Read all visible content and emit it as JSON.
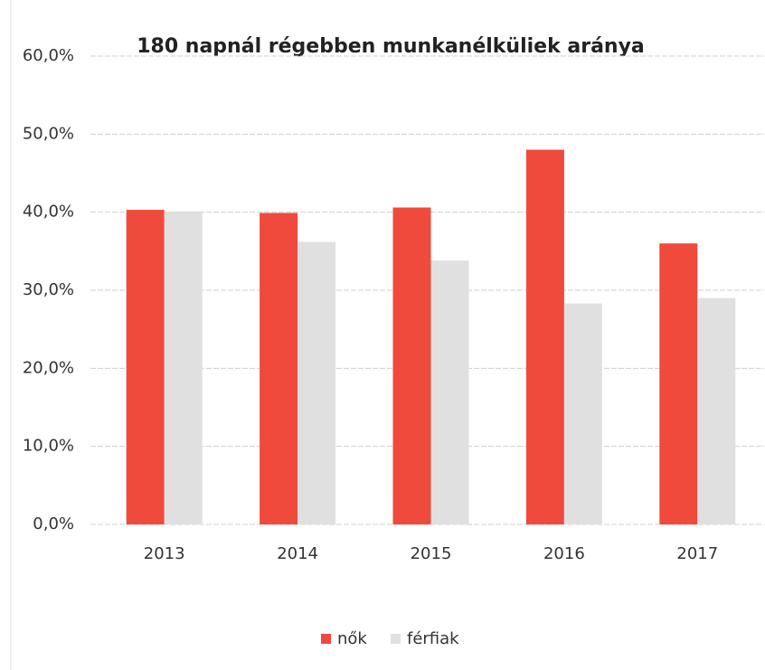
{
  "chart_data": {
    "type": "bar",
    "title": "180 napnál régebben munkanélküliek aránya",
    "categories": [
      "2013",
      "2014",
      "2015",
      "2016",
      "2017"
    ],
    "series": [
      {
        "name": "nők",
        "color": "#f04a3c",
        "values": [
          40.3,
          39.9,
          40.6,
          48.0,
          36.0
        ]
      },
      {
        "name": "férfiak",
        "color": "#e0e0e0",
        "values": [
          40.1,
          36.2,
          33.8,
          28.3,
          29.0
        ]
      }
    ],
    "ylim": [
      0,
      60
    ],
    "yticks": [
      {
        "value": 0,
        "label": "0,0%"
      },
      {
        "value": 10,
        "label": "10,0%"
      },
      {
        "value": 20,
        "label": "20,0%"
      },
      {
        "value": 30,
        "label": "30,0%"
      },
      {
        "value": 40,
        "label": "40,0%"
      },
      {
        "value": 50,
        "label": "50,0%"
      },
      {
        "value": 60,
        "label": "60,0%"
      }
    ],
    "grid": true,
    "legend": "bottom"
  }
}
